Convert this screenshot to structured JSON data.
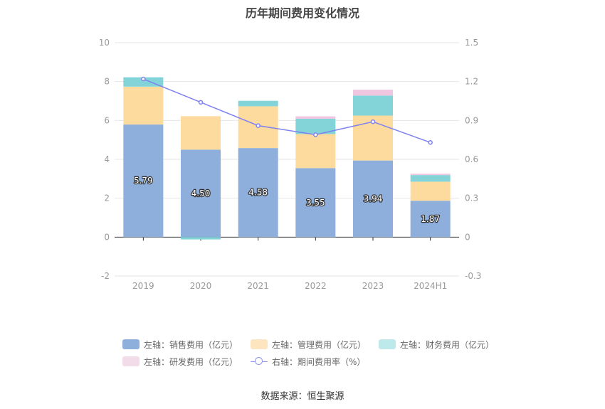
{
  "chart_data": {
    "type": "bar",
    "title": "历年期间费用变化情况",
    "categories": [
      "2019",
      "2020",
      "2021",
      "2022",
      "2023",
      "2024H1"
    ],
    "series": [
      {
        "name": "左轴：销售费用（亿元）",
        "axis": "left",
        "kind": "bar",
        "color": "#8eaedc",
        "values": [
          5.79,
          4.5,
          4.58,
          3.55,
          3.94,
          1.87
        ],
        "labels": [
          "5.79",
          "4.50",
          "4.58",
          "3.55",
          "3.94",
          "1.87"
        ]
      },
      {
        "name": "左轴：管理费用（亿元）",
        "axis": "left",
        "kind": "bar",
        "color": "#fddb9e",
        "values": [
          1.95,
          1.72,
          2.15,
          1.75,
          2.31,
          0.98
        ]
      },
      {
        "name": "左轴：财务费用（亿元）",
        "axis": "left",
        "kind": "bar",
        "color": "#83d4d9",
        "values": [
          0.48,
          -0.12,
          0.28,
          0.79,
          1.03,
          0.34
        ]
      },
      {
        "name": "左轴：研发费用（亿元）",
        "axis": "left",
        "kind": "bar",
        "color": "#f0c5e0",
        "values": [
          0,
          0,
          0,
          0.12,
          0.3,
          0.07
        ]
      },
      {
        "name": "右轴：期间费用率（%）",
        "axis": "right",
        "kind": "line",
        "color": "#7e82ee",
        "values": [
          1.22,
          1.04,
          0.86,
          0.79,
          0.89,
          0.73
        ]
      }
    ],
    "ylim_left": [
      -2,
      10
    ],
    "yticks_left": [
      "10",
      "8",
      "6",
      "4",
      "2",
      "0",
      "-2"
    ],
    "ylim_right": [
      -0.3,
      1.5
    ],
    "yticks_right": [
      "1.5",
      "1.2",
      "0.9",
      "0.6",
      "0.3",
      "0",
      "-0.3"
    ],
    "grid": true,
    "legend_position": "bottom"
  },
  "source": "数据来源：恒生聚源"
}
